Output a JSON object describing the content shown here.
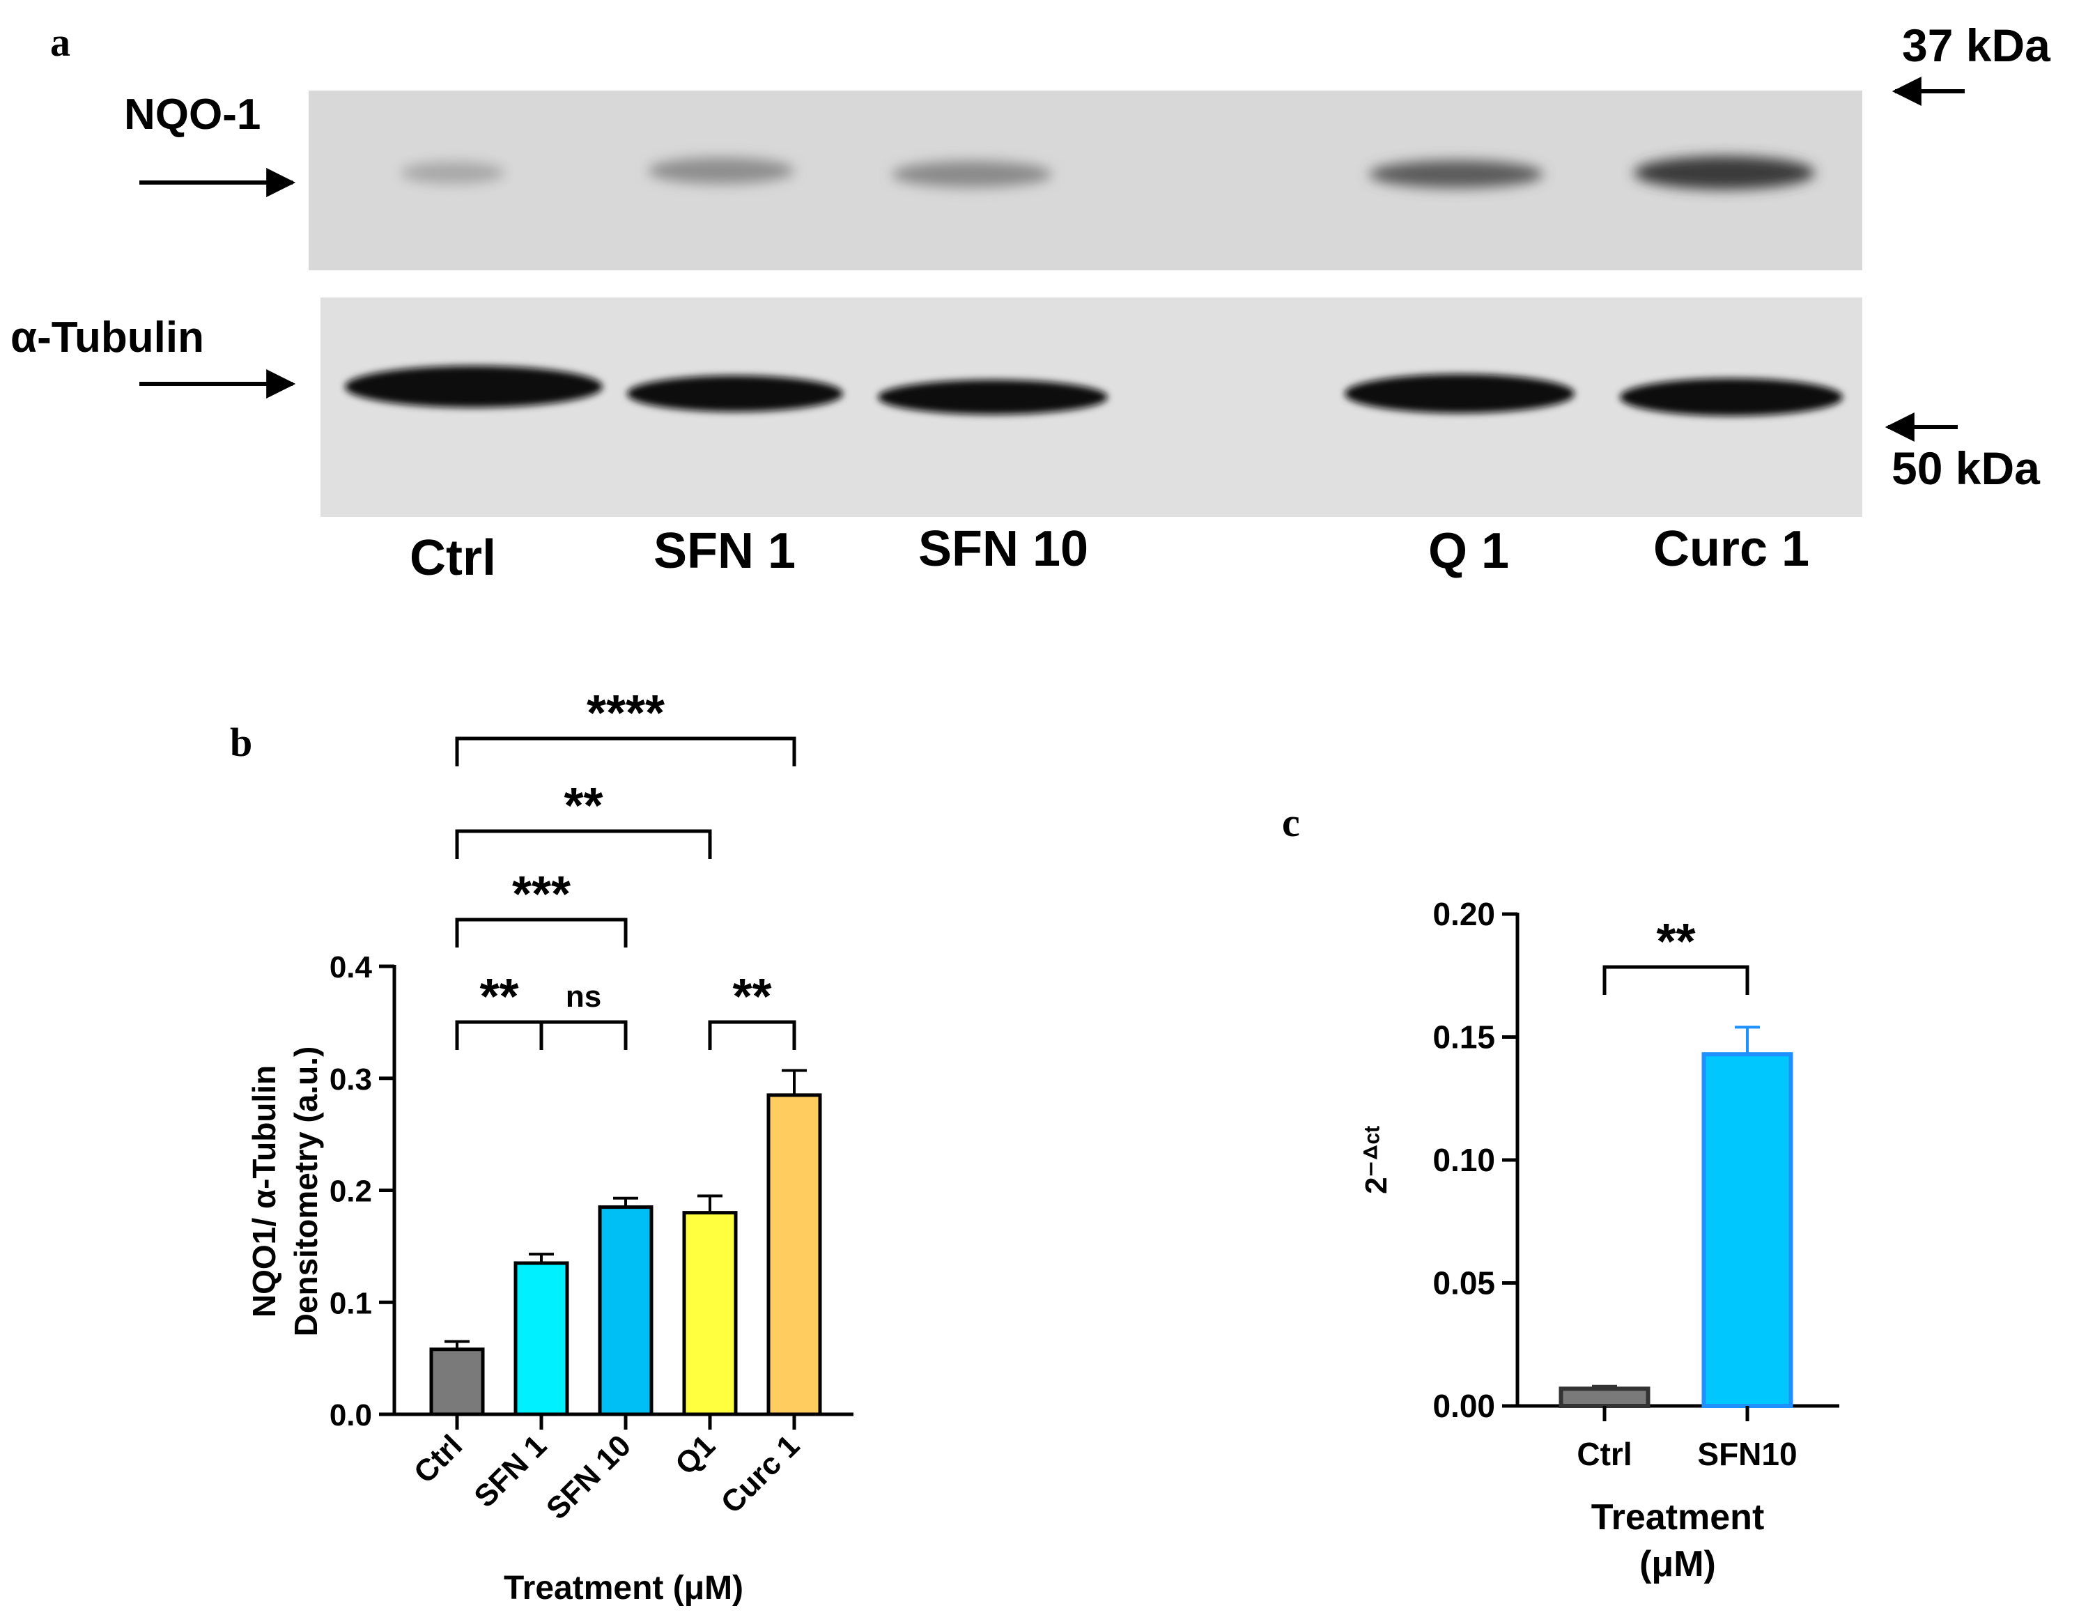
{
  "panel_a": {
    "panel_label": "a",
    "label_nqo1": "NQO-1",
    "label_tubulin": "α-Tubulin",
    "marker_37": "37 kDa",
    "marker_50": "50 kDa",
    "lanes": [
      "Ctrl",
      "SFN 1",
      "SFN 10",
      "Q 1",
      "Curc 1"
    ]
  },
  "chart_data": [
    {
      "type": "bar",
      "panel_label": "b",
      "categories": [
        "Ctrl",
        "SFN 1",
        "SFN 10",
        "Q1",
        "Curc 1"
      ],
      "values": [
        0.058,
        0.135,
        0.185,
        0.18,
        0.285
      ],
      "errors": [
        0.007,
        0.008,
        0.008,
        0.015,
        0.022
      ],
      "colors": [
        "#7a7a7a",
        "#00f0ff",
        "#00bff5",
        "#ffff40",
        "#ffcc60"
      ],
      "ylabel_line1": "NQO1/ α-Tubulin",
      "ylabel_line2": "Densitometry (a.u.)",
      "xlabel": "Treatment (μM)",
      "ylim": [
        0,
        0.4
      ],
      "yticks": [
        "0.0",
        "0.1",
        "0.2",
        "0.3",
        "0.4"
      ],
      "significance": [
        {
          "from": 0,
          "to": 1,
          "label": "**"
        },
        {
          "from": 1,
          "to": 2,
          "label": "ns"
        },
        {
          "from": 3,
          "to": 4,
          "label": "**"
        },
        {
          "from": 0,
          "to": 2,
          "label": "***"
        },
        {
          "from": 0,
          "to": 3,
          "label": "**"
        },
        {
          "from": 0,
          "to": 4,
          "label": "****"
        }
      ]
    },
    {
      "type": "bar",
      "panel_label": "c",
      "categories": [
        "Ctrl",
        "SFN10"
      ],
      "values": [
        0.007,
        0.143
      ],
      "errors": [
        0.001,
        0.011
      ],
      "colors": [
        "#7a7a7a",
        "#00c8ff"
      ],
      "ylabel": "2⁻ᐞᶜᵗ",
      "xlabel_line1": "Treatment",
      "xlabel_line2": "(μM)",
      "ylim": [
        0,
        0.2
      ],
      "yticks": [
        "0.00",
        "0.05",
        "0.10",
        "0.15",
        "0.20"
      ],
      "significance": [
        {
          "from": 0,
          "to": 1,
          "label": "**"
        }
      ]
    }
  ]
}
